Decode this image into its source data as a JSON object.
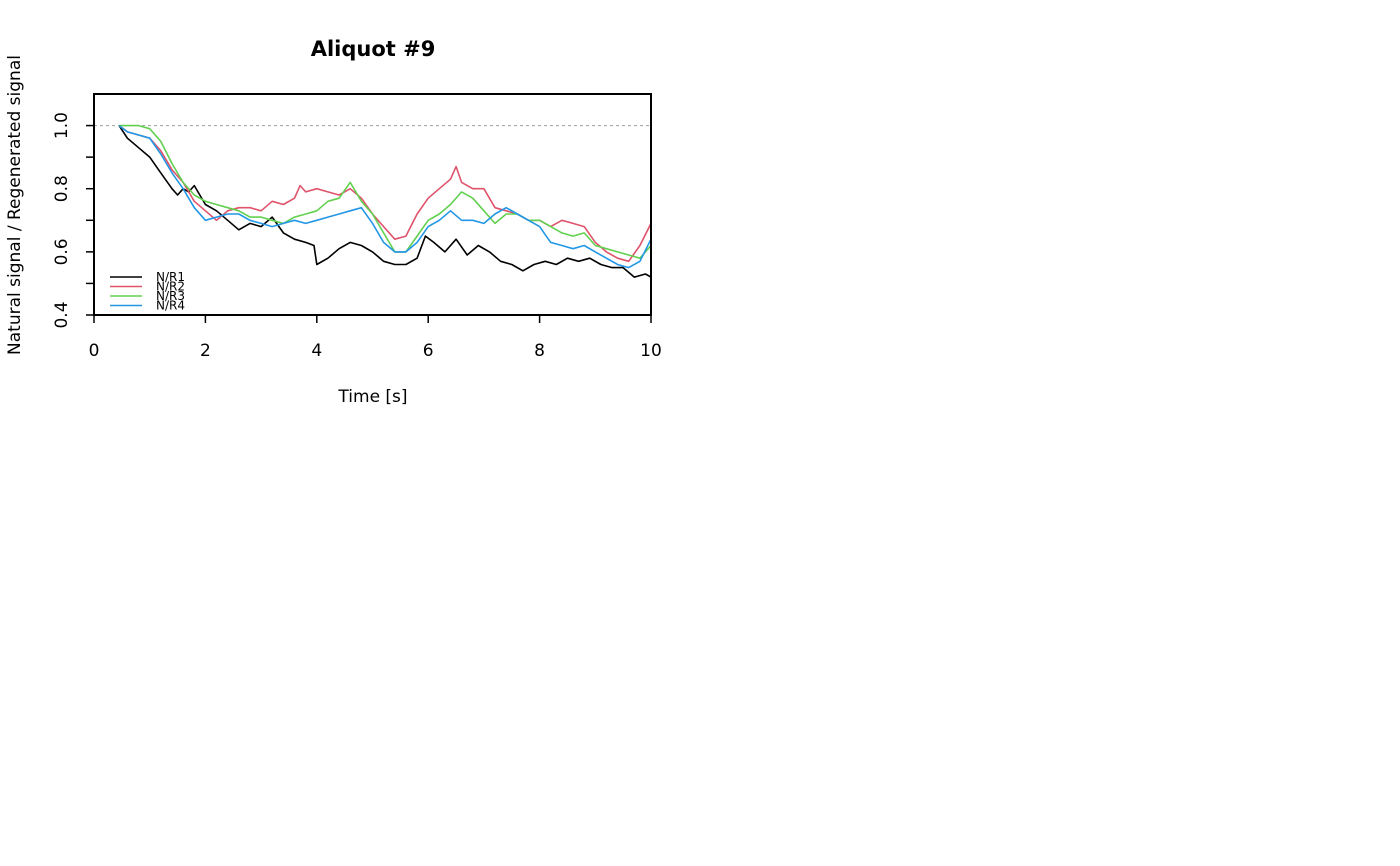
{
  "chart_data": {
    "type": "line",
    "title": "Aliquot #9",
    "xlabel": "Time [s]",
    "ylabel": "Natural signal / Regenerated signal",
    "xlim": [
      0,
      10
    ],
    "ylim": [
      0.4,
      1.1
    ],
    "x_ticks": [
      0,
      2,
      4,
      6,
      8,
      10
    ],
    "y_ticks": [
      0.4,
      0.6,
      0.8,
      1.0
    ],
    "y_minor_ticks": [
      0.5,
      0.7,
      0.9
    ],
    "reference_line": {
      "y": 1.0,
      "style": "dotted",
      "color": "#aaaaaa"
    },
    "grid": false,
    "legend_position": "bottom-left",
    "series": [
      {
        "name": "N/R1",
        "color": "#000000",
        "x": [
          0.45,
          0.6,
          0.8,
          1.0,
          1.2,
          1.4,
          1.5,
          1.6,
          1.7,
          1.8,
          2.0,
          2.2,
          2.4,
          2.6,
          2.8,
          3.0,
          3.2,
          3.4,
          3.6,
          3.8,
          3.95,
          4.0,
          4.2,
          4.4,
          4.6,
          4.8,
          5.0,
          5.2,
          5.4,
          5.6,
          5.8,
          5.95,
          6.1,
          6.3,
          6.5,
          6.7,
          6.9,
          7.1,
          7.3,
          7.5,
          7.7,
          7.9,
          8.1,
          8.3,
          8.5,
          8.7,
          8.9,
          9.1,
          9.3,
          9.5,
          9.7,
          9.9,
          10.0
        ],
        "y": [
          1.0,
          0.96,
          0.93,
          0.9,
          0.85,
          0.8,
          0.78,
          0.8,
          0.79,
          0.81,
          0.75,
          0.73,
          0.7,
          0.67,
          0.69,
          0.68,
          0.71,
          0.66,
          0.64,
          0.63,
          0.62,
          0.56,
          0.58,
          0.61,
          0.63,
          0.62,
          0.6,
          0.57,
          0.56,
          0.56,
          0.58,
          0.65,
          0.63,
          0.6,
          0.64,
          0.59,
          0.62,
          0.6,
          0.57,
          0.56,
          0.54,
          0.56,
          0.57,
          0.56,
          0.58,
          0.57,
          0.58,
          0.56,
          0.55,
          0.55,
          0.52,
          0.53,
          0.52
        ]
      },
      {
        "name": "N/R2",
        "color": "#DF536B",
        "x": [
          0.45,
          0.6,
          0.8,
          1.0,
          1.2,
          1.4,
          1.6,
          1.8,
          2.0,
          2.2,
          2.4,
          2.6,
          2.8,
          3.0,
          3.2,
          3.4,
          3.6,
          3.7,
          3.8,
          4.0,
          4.2,
          4.4,
          4.6,
          4.8,
          5.0,
          5.2,
          5.4,
          5.6,
          5.8,
          6.0,
          6.2,
          6.4,
          6.5,
          6.6,
          6.8,
          7.0,
          7.2,
          7.4,
          7.6,
          7.8,
          8.0,
          8.2,
          8.4,
          8.6,
          8.8,
          9.0,
          9.2,
          9.4,
          9.6,
          9.8,
          10.0
        ],
        "y": [
          1.0,
          0.98,
          0.97,
          0.96,
          0.92,
          0.86,
          0.82,
          0.76,
          0.73,
          0.7,
          0.73,
          0.74,
          0.74,
          0.73,
          0.76,
          0.75,
          0.77,
          0.81,
          0.79,
          0.8,
          0.79,
          0.78,
          0.8,
          0.77,
          0.72,
          0.68,
          0.64,
          0.65,
          0.72,
          0.77,
          0.8,
          0.83,
          0.87,
          0.82,
          0.8,
          0.8,
          0.74,
          0.73,
          0.72,
          0.7,
          0.7,
          0.68,
          0.7,
          0.69,
          0.68,
          0.63,
          0.6,
          0.58,
          0.57,
          0.62,
          0.69
        ]
      },
      {
        "name": "N/R3",
        "color": "#61D04F",
        "x": [
          0.45,
          0.6,
          0.8,
          1.0,
          1.2,
          1.4,
          1.6,
          1.8,
          2.0,
          2.2,
          2.4,
          2.6,
          2.8,
          3.0,
          3.2,
          3.4,
          3.6,
          3.8,
          4.0,
          4.2,
          4.4,
          4.6,
          4.8,
          5.0,
          5.2,
          5.4,
          5.6,
          5.8,
          6.0,
          6.2,
          6.4,
          6.6,
          6.8,
          7.0,
          7.2,
          7.4,
          7.6,
          7.8,
          8.0,
          8.2,
          8.4,
          8.6,
          8.8,
          9.0,
          9.2,
          9.4,
          9.6,
          9.8,
          10.0
        ],
        "y": [
          1.0,
          1.0,
          1.0,
          0.99,
          0.95,
          0.88,
          0.82,
          0.78,
          0.76,
          0.75,
          0.74,
          0.73,
          0.71,
          0.71,
          0.7,
          0.69,
          0.71,
          0.72,
          0.73,
          0.76,
          0.77,
          0.82,
          0.76,
          0.72,
          0.66,
          0.6,
          0.6,
          0.65,
          0.7,
          0.72,
          0.75,
          0.79,
          0.77,
          0.73,
          0.69,
          0.72,
          0.72,
          0.7,
          0.7,
          0.68,
          0.66,
          0.65,
          0.66,
          0.62,
          0.61,
          0.6,
          0.59,
          0.58,
          0.62
        ]
      },
      {
        "name": "N/R4",
        "color": "#2297E6",
        "x": [
          0.45,
          0.6,
          0.8,
          1.0,
          1.2,
          1.4,
          1.6,
          1.8,
          2.0,
          2.2,
          2.4,
          2.6,
          2.8,
          3.0,
          3.2,
          3.4,
          3.6,
          3.8,
          4.0,
          4.2,
          4.4,
          4.6,
          4.8,
          5.0,
          5.2,
          5.4,
          5.6,
          5.8,
          6.0,
          6.2,
          6.4,
          6.6,
          6.8,
          7.0,
          7.2,
          7.4,
          7.6,
          7.8,
          8.0,
          8.2,
          8.4,
          8.6,
          8.8,
          9.0,
          9.2,
          9.4,
          9.6,
          9.8,
          10.0
        ],
        "y": [
          1.0,
          0.98,
          0.97,
          0.96,
          0.91,
          0.85,
          0.8,
          0.74,
          0.7,
          0.71,
          0.72,
          0.72,
          0.7,
          0.69,
          0.68,
          0.69,
          0.7,
          0.69,
          0.7,
          0.71,
          0.72,
          0.73,
          0.74,
          0.69,
          0.63,
          0.6,
          0.6,
          0.63,
          0.68,
          0.7,
          0.73,
          0.7,
          0.7,
          0.69,
          0.72,
          0.74,
          0.72,
          0.7,
          0.68,
          0.63,
          0.62,
          0.61,
          0.62,
          0.6,
          0.58,
          0.56,
          0.55,
          0.57,
          0.64
        ]
      }
    ]
  }
}
